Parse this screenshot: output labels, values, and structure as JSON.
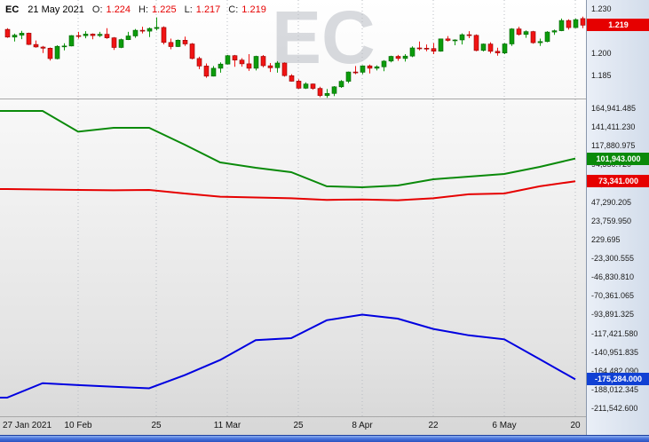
{
  "header": {
    "symbol": "EC",
    "date": "21 May 2021",
    "o_label": "O:",
    "o": "1.224",
    "h_label": "H:",
    "h": "1.225",
    "l_label": "L:",
    "l": "1.217",
    "c_label": "C:",
    "c": "1.219"
  },
  "watermark": "EC",
  "price_axis": {
    "ticks": [
      {
        "label": "1.230",
        "value": 1.23
      },
      {
        "label": "1.200",
        "value": 1.2
      },
      {
        "label": "1.185",
        "value": 1.185
      }
    ],
    "badge": {
      "label": "1.219",
      "value": 1.219,
      "color": "#e60000"
    }
  },
  "indicator_axis": {
    "ticks": [
      {
        "label": "164,941.485",
        "value": 164941.485
      },
      {
        "label": "141,411.230",
        "value": 141411.23
      },
      {
        "label": "117,880.975",
        "value": 117880.975
      },
      {
        "label": "94,350.720",
        "value": 94350.72
      },
      {
        "label": "70,820.465",
        "value": 70820.465
      },
      {
        "label": "47,290.205",
        "value": 47290.205
      },
      {
        "label": "23,759.950",
        "value": 23759.95
      },
      {
        "label": "229.695",
        "value": 229.695
      },
      {
        "label": "-23,300.555",
        "value": -23300.555
      },
      {
        "label": "-46,830.810",
        "value": -46830.81
      },
      {
        "label": "-70,361.065",
        "value": -70361.065
      },
      {
        "label": "-93,891.325",
        "value": -93891.325
      },
      {
        "label": "-117,421.580",
        "value": -117421.58
      },
      {
        "label": "-140,951.835",
        "value": -140951.835
      },
      {
        "label": "-164,482.090",
        "value": -164482.09
      },
      {
        "label": "-188,012.345",
        "value": -188012.345
      },
      {
        "label": "-211,542.600",
        "value": -211542.6
      }
    ],
    "badges": [
      {
        "label": "101,943.000",
        "value": 101943,
        "color": "#0a8a0a"
      },
      {
        "label": "73,341.000",
        "value": 73341,
        "color": "#e60000"
      },
      {
        "label": "-175,284.000",
        "value": -175284,
        "color": "#1141d4"
      }
    ]
  },
  "x_axis": {
    "labels": [
      {
        "text": "27 Jan 2021",
        "index": 0
      },
      {
        "text": "10 Feb",
        "index": 10
      },
      {
        "text": "25",
        "index": 21
      },
      {
        "text": "11 Mar",
        "index": 31
      },
      {
        "text": "25",
        "index": 41
      },
      {
        "text": "8 Apr",
        "index": 50
      },
      {
        "text": "22",
        "index": 60
      },
      {
        "text": "6 May",
        "index": 70
      },
      {
        "text": "20",
        "index": 80
      }
    ]
  },
  "chart_data": [
    {
      "type": "candlestick",
      "panel": "price",
      "axis_range": [
        1.169,
        1.236
      ],
      "y_tick_labels": [
        "1.230",
        "1.200",
        "1.185"
      ],
      "last_close": 1.219,
      "up_color": "#0c9b0c",
      "down_color": "#f01414",
      "up_border": "#046404",
      "down_border": "#8f0000",
      "ohlc": [
        [
          1.2162,
          1.217,
          1.2105,
          1.211
        ],
        [
          1.211,
          1.2133,
          1.208,
          1.2123
        ],
        [
          1.2123,
          1.2152,
          1.2096,
          1.2136
        ],
        [
          1.2136,
          1.214,
          1.2056,
          1.206
        ],
        [
          1.206,
          1.2087,
          1.2038,
          1.2043
        ],
        [
          1.2043,
          1.205,
          1.2003,
          1.2035
        ],
        [
          1.2035,
          1.204,
          1.1952,
          1.1965
        ],
        [
          1.1965,
          1.2055,
          1.196,
          1.2048
        ],
        [
          1.2048,
          1.2068,
          1.202,
          1.205
        ],
        [
          1.205,
          1.2123,
          1.2048,
          1.212
        ],
        [
          1.212,
          1.2145,
          1.21,
          1.2119
        ],
        [
          1.2119,
          1.215,
          1.2102,
          1.213
        ],
        [
          1.213,
          1.2135,
          1.2095,
          1.212
        ],
        [
          1.212,
          1.2145,
          1.211,
          1.2129
        ],
        [
          1.2129,
          1.217,
          1.2098,
          1.2105
        ],
        [
          1.2105,
          1.211,
          1.2023,
          1.204
        ],
        [
          1.204,
          1.21,
          1.2035,
          1.2093
        ],
        [
          1.2093,
          1.2145,
          1.209,
          1.2118
        ],
        [
          1.2118,
          1.2165,
          1.2105,
          1.2156
        ],
        [
          1.2156,
          1.218,
          1.2135,
          1.215
        ],
        [
          1.215,
          1.2175,
          1.211,
          1.2168
        ],
        [
          1.2168,
          1.2243,
          1.2155,
          1.2175
        ],
        [
          1.2175,
          1.2183,
          1.2061,
          1.2074
        ],
        [
          1.2074,
          1.21,
          1.2028,
          1.2046
        ],
        [
          1.2046,
          1.2094,
          1.2043,
          1.2089
        ],
        [
          1.2089,
          1.2113,
          1.205,
          1.2064
        ],
        [
          1.2064,
          1.207,
          1.196,
          1.1966
        ],
        [
          1.1966,
          1.1978,
          1.1894,
          1.1915
        ],
        [
          1.1915,
          1.1932,
          1.1836,
          1.1847
        ],
        [
          1.1847,
          1.1915,
          1.1845,
          1.19
        ],
        [
          1.19,
          1.194,
          1.187,
          1.1928
        ],
        [
          1.1928,
          1.199,
          1.1925,
          1.1985
        ],
        [
          1.1985,
          1.199,
          1.191,
          1.1955
        ],
        [
          1.1955,
          1.1968,
          1.1911,
          1.193
        ],
        [
          1.193,
          1.1995,
          1.1882,
          1.19
        ],
        [
          1.19,
          1.1985,
          1.1885,
          1.198
        ],
        [
          1.198,
          1.1989,
          1.1906,
          1.1917
        ],
        [
          1.1917,
          1.1935,
          1.1875,
          1.1903
        ],
        [
          1.1903,
          1.1948,
          1.187,
          1.1935
        ],
        [
          1.1935,
          1.194,
          1.1843,
          1.185
        ],
        [
          1.185,
          1.186,
          1.181,
          1.1813
        ],
        [
          1.1813,
          1.1825,
          1.176,
          1.1765
        ],
        [
          1.1765,
          1.1805,
          1.176,
          1.1794
        ],
        [
          1.1794,
          1.1797,
          1.1755,
          1.1764
        ],
        [
          1.1764,
          1.1775,
          1.1705,
          1.1716
        ],
        [
          1.1716,
          1.176,
          1.17,
          1.173
        ],
        [
          1.173,
          1.178,
          1.1712,
          1.1775
        ],
        [
          1.1775,
          1.182,
          1.1768,
          1.1812
        ],
        [
          1.1812,
          1.1878,
          1.18,
          1.1875
        ],
        [
          1.1875,
          1.1915,
          1.186,
          1.1873
        ],
        [
          1.1873,
          1.192,
          1.186,
          1.1916
        ],
        [
          1.1916,
          1.1925,
          1.1865,
          1.19
        ],
        [
          1.19,
          1.192,
          1.1885,
          1.191
        ],
        [
          1.191,
          1.1955,
          1.188,
          1.1948
        ],
        [
          1.1948,
          1.1985,
          1.194,
          1.198
        ],
        [
          1.198,
          1.199,
          1.195,
          1.1966
        ],
        [
          1.1966,
          1.1995,
          1.1945,
          1.1982
        ],
        [
          1.1982,
          1.2048,
          1.1975,
          1.2037
        ],
        [
          1.2037,
          1.208,
          1.202,
          1.2035
        ],
        [
          1.2035,
          1.206,
          1.2015,
          1.2033
        ],
        [
          1.2033,
          1.207,
          1.1995,
          1.2015
        ],
        [
          1.2015,
          1.21,
          1.2012,
          1.2098
        ],
        [
          1.2098,
          1.2117,
          1.208,
          1.2088
        ],
        [
          1.2088,
          1.2095,
          1.2055,
          1.2091
        ],
        [
          1.2091,
          1.2135,
          1.206,
          1.2126
        ],
        [
          1.2126,
          1.215,
          1.2103,
          1.2122
        ],
        [
          1.2122,
          1.2128,
          1.2015,
          1.202
        ],
        [
          1.202,
          1.2067,
          1.2013,
          1.2063
        ],
        [
          1.2063,
          1.2075,
          1.1999,
          1.2014
        ],
        [
          1.2014,
          1.2038,
          1.1985,
          1.2003
        ],
        [
          1.2003,
          1.207,
          1.1995,
          1.2064
        ],
        [
          1.2064,
          1.217,
          1.205,
          1.2165
        ],
        [
          1.2165,
          1.218,
          1.212,
          1.2128
        ],
        [
          1.2128,
          1.2155,
          1.2105,
          1.2147
        ],
        [
          1.2147,
          1.2152,
          1.2065,
          1.2072
        ],
        [
          1.2072,
          1.21,
          1.205,
          1.208
        ],
        [
          1.208,
          1.215,
          1.2075,
          1.2144
        ],
        [
          1.2144,
          1.216,
          1.2125,
          1.2153
        ],
        [
          1.2153,
          1.2235,
          1.215,
          1.2222
        ],
        [
          1.2222,
          1.223,
          1.216,
          1.2174
        ],
        [
          1.2174,
          1.2235,
          1.217,
          1.2228
        ],
        [
          1.2235,
          1.2248,
          1.217,
          1.219
        ]
      ]
    },
    {
      "type": "line",
      "panel": "indicator",
      "axis_range": [
        -222680,
        176080
      ],
      "x_indices": [
        0,
        5,
        10,
        15,
        20,
        25,
        30,
        35,
        40,
        45,
        50,
        55,
        60,
        65,
        70,
        75,
        80
      ],
      "series": [
        {
          "name": "green",
          "color": "#0a8a0a",
          "last_label": "101,943.000",
          "values": [
            161600,
            161600,
            135500,
            140400,
            140400,
            119300,
            97000,
            90300,
            84700,
            67000,
            65800,
            68000,
            75800,
            79200,
            82500,
            91400,
            101943
          ]
        },
        {
          "name": "red",
          "color": "#e60000",
          "last_label": "73,341.000",
          "values": [
            63600,
            63000,
            62500,
            62000,
            62500,
            58000,
            54000,
            53000,
            52000,
            50000,
            50500,
            49500,
            52000,
            57000,
            58000,
            67000,
            73341
          ]
        },
        {
          "name": "blue",
          "color": "#0000e0",
          "last_label": "-175,284.000",
          "values": [
            -198158,
            -180000,
            -182500,
            -184500,
            -186500,
            -170000,
            -151000,
            -126000,
            -123500,
            -101000,
            -94000,
            -99000,
            -112000,
            -120000,
            -125000,
            -150000,
            -175284
          ]
        }
      ]
    }
  ]
}
